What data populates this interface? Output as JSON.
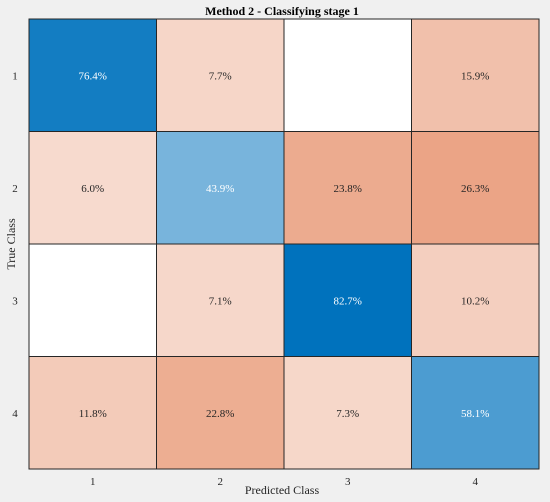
{
  "chart_data": {
    "type": "heatmap",
    "title": "Method 2 - Classifying stage 1",
    "xlabel": "Predicted Class",
    "ylabel": "True Class",
    "x_categories": [
      "1",
      "2",
      "3",
      "4"
    ],
    "y_categories": [
      "1",
      "2",
      "3",
      "4"
    ],
    "values": [
      [
        76.4,
        7.7,
        null,
        15.9
      ],
      [
        6.0,
        43.9,
        23.8,
        26.3
      ],
      [
        null,
        7.1,
        82.7,
        10.2
      ],
      [
        11.8,
        22.8,
        7.3,
        58.1
      ]
    ],
    "value_suffix": "%",
    "diagonal_color": "#0072bd",
    "offdiagonal_color": "#d95319"
  }
}
